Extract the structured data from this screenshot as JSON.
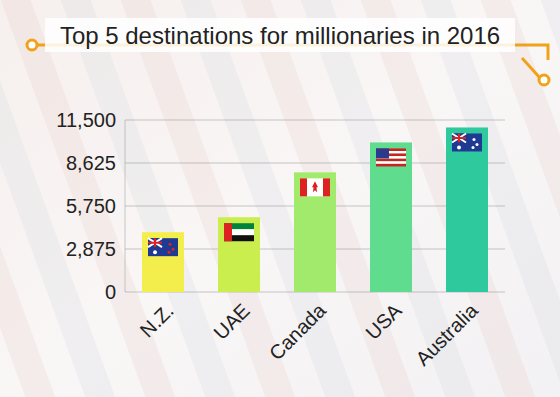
{
  "chart_data": {
    "type": "bar",
    "title": "Top 5 destinations for millionaries in 2016",
    "categories": [
      "N.Z.",
      "UAE",
      "Canada",
      "USA",
      "Australia"
    ],
    "values": [
      4000,
      5000,
      8000,
      10000,
      11000
    ],
    "colors": [
      "#f4ee4c",
      "#c9ee4e",
      "#a2ea6c",
      "#5fdc8e",
      "#2ec99c"
    ],
    "ylim": [
      0,
      11500
    ],
    "yticks": [
      0,
      {
        "value": 2875,
        "label": "2,875"
      },
      {
        "value": 5750,
        "label": "5,750"
      },
      {
        "value": 8625,
        "label": "8,625"
      },
      {
        "value": 11500,
        "label": "11,500"
      }
    ],
    "grid": true
  }
}
